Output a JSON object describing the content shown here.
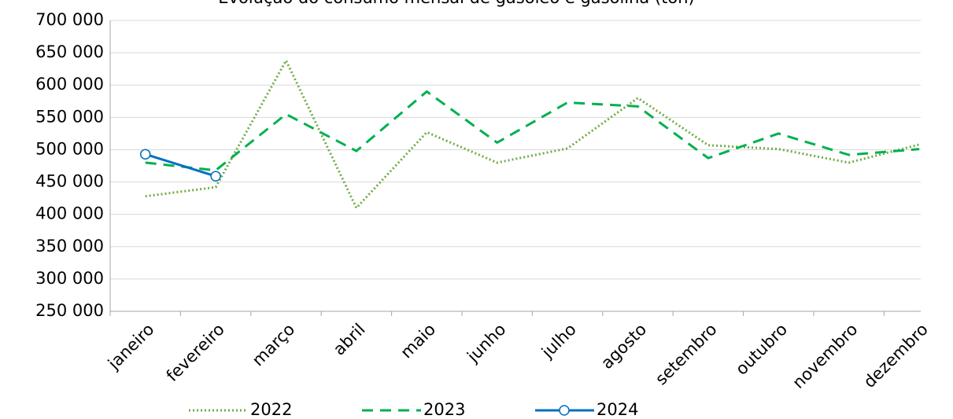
{
  "chart_data": {
    "type": "line",
    "title": "Evolução do consumo mensal de gasóleo e gasolina (ton)",
    "categories": [
      "janeiro",
      "fevereiro",
      "março",
      "abril",
      "maio",
      "junho",
      "julho",
      "agosto",
      "setembro",
      "outubro",
      "novembro",
      "dezembro"
    ],
    "series": [
      {
        "name": "2022",
        "color": "#70ad47",
        "style": "dotted",
        "values": [
          428000,
          442000,
          638000,
          410000,
          527000,
          480000,
          502000,
          580000,
          507000,
          501000,
          480000,
          508000
        ]
      },
      {
        "name": "2023",
        "color": "#00b050",
        "style": "dashed",
        "values": [
          480000,
          468000,
          555000,
          498000,
          590000,
          511000,
          573000,
          567000,
          487000,
          525000,
          492000,
          501000
        ]
      },
      {
        "name": "2024",
        "color": "#0070c0",
        "style": "solid",
        "marker": "circle",
        "values": [
          493000,
          459000,
          null,
          null,
          null,
          null,
          null,
          null,
          null,
          null,
          null,
          null
        ]
      }
    ],
    "ylim": [
      250000,
      700000
    ],
    "yticks": [
      {
        "value": 250000,
        "label": "250 000"
      },
      {
        "value": 300000,
        "label": "300 000"
      },
      {
        "value": 350000,
        "label": "350 000"
      },
      {
        "value": 400000,
        "label": "400 000"
      },
      {
        "value": 450000,
        "label": "450 000"
      },
      {
        "value": 500000,
        "label": "500 000"
      },
      {
        "value": 550000,
        "label": "550 000"
      },
      {
        "value": 600000,
        "label": "600 000"
      },
      {
        "value": 650000,
        "label": "650 000"
      },
      {
        "value": 700000,
        "label": "700 000"
      }
    ],
    "grid": true,
    "legend": "bottom"
  }
}
